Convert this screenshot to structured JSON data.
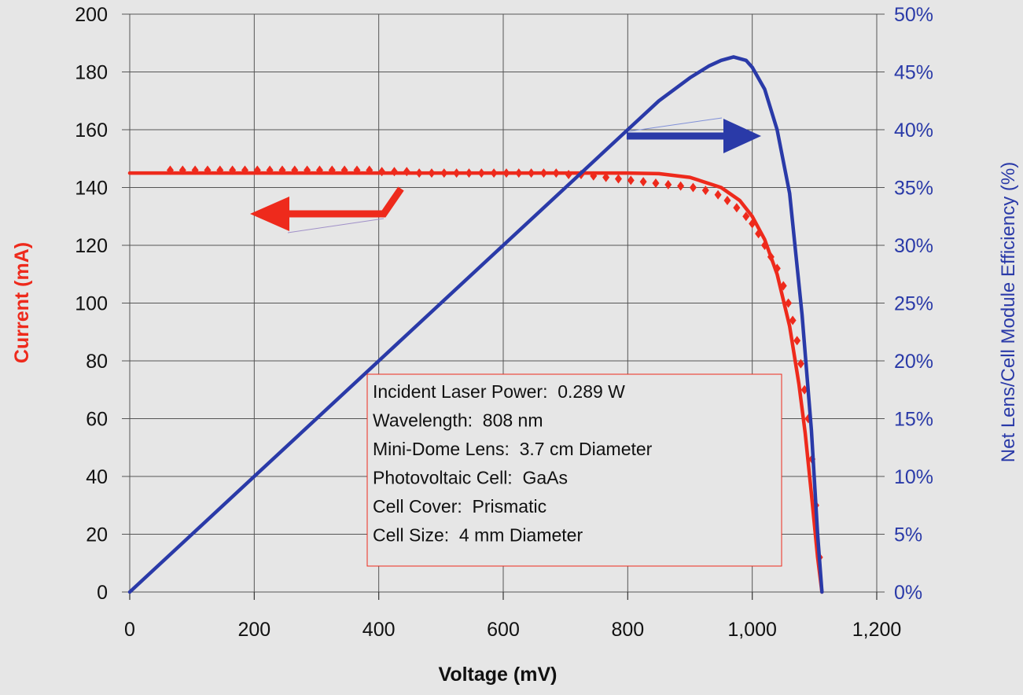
{
  "chart_data": {
    "type": "line",
    "xlabel": "Voltage (mV)",
    "ylabel": "Current (mA)",
    "ylabel_right": "Net Lens/Cell Module Efficiency (%)",
    "xlim": [
      0,
      1200
    ],
    "ylim": [
      0,
      200
    ],
    "ylim_right": [
      0,
      50
    ],
    "x_ticks": [
      "0",
      "200",
      "400",
      "600",
      "800",
      "1,000",
      "1,200"
    ],
    "y_ticks": [
      "0",
      "20",
      "40",
      "60",
      "80",
      "100",
      "120",
      "140",
      "160",
      "180",
      "200"
    ],
    "y_ticks_right": [
      "0%",
      "5%",
      "10%",
      "15%",
      "20%",
      "25%",
      "30%",
      "35%",
      "40%",
      "45%",
      "50%"
    ],
    "grid": true,
    "colors": {
      "current": "#ee2a1c",
      "efficiency": "#2a3aa8",
      "background": "#e6e6e6",
      "grid": "#555555"
    },
    "series": [
      {
        "axis": "left",
        "style": "line",
        "color": "#ee2a1c",
        "x": [
          0,
          100,
          200,
          300,
          400,
          500,
          600,
          700,
          800,
          850,
          900,
          950,
          980,
          1000,
          1020,
          1040,
          1060,
          1075,
          1085,
          1095,
          1105,
          1112
        ],
        "y": [
          145,
          145,
          145,
          145,
          145,
          145,
          145,
          145,
          145,
          144.8,
          143.5,
          140,
          135.5,
          130,
          122,
          110,
          92,
          72,
          55,
          34,
          12,
          0
        ]
      },
      {
        "axis": "left",
        "style": "markers",
        "color": "#ee2a1c",
        "x": [
          65,
          85,
          105,
          125,
          145,
          165,
          185,
          205,
          225,
          245,
          265,
          285,
          305,
          325,
          345,
          365,
          385,
          405,
          425,
          445,
          465,
          485,
          505,
          525,
          545,
          565,
          585,
          605,
          625,
          645,
          665,
          685,
          705,
          725,
          745,
          765,
          785,
          805,
          825,
          845,
          865,
          885,
          905,
          925,
          945,
          960,
          975,
          990,
          1000,
          1010,
          1020,
          1030,
          1040,
          1050,
          1058,
          1065,
          1072,
          1078,
          1084,
          1090,
          1096,
          1102,
          1108
        ],
        "y": [
          146,
          146,
          146,
          146,
          146,
          146,
          146,
          146,
          146,
          146,
          146,
          146,
          146,
          146,
          146,
          146,
          146,
          145.5,
          145.5,
          145.5,
          145,
          145,
          145,
          145,
          145,
          145,
          145,
          145,
          145,
          145,
          145,
          145,
          144.5,
          144.5,
          144,
          143.5,
          143,
          142.5,
          142,
          141.5,
          141,
          140.5,
          140,
          139,
          137.5,
          135.5,
          133,
          130,
          127.5,
          124,
          120,
          116,
          112,
          106,
          100,
          94,
          87,
          79,
          70,
          60,
          46,
          30,
          12
        ]
      },
      {
        "axis": "right",
        "style": "line",
        "color": "#2a3aa8",
        "x": [
          0,
          100,
          200,
          300,
          400,
          500,
          600,
          700,
          800,
          850,
          900,
          930,
          950,
          970,
          990,
          1000,
          1020,
          1040,
          1060,
          1080,
          1095,
          1105,
          1112
        ],
        "y": [
          0,
          5,
          10,
          15,
          20,
          25,
          30,
          35,
          40,
          42.5,
          44.5,
          45.5,
          46,
          46.3,
          46,
          45.4,
          43.5,
          40,
          34.5,
          24,
          14,
          5,
          0
        ]
      }
    ],
    "annotations": [
      "Incident Laser Power:  0.289 W",
      "Wavelength:  808 nm",
      "Mini-Dome Lens:  3.7 cm Diameter",
      "Photovoltaic Cell:  GaAs",
      "Cell Cover:  Prismatic",
      "Cell Size:  4 mm Diameter"
    ]
  }
}
